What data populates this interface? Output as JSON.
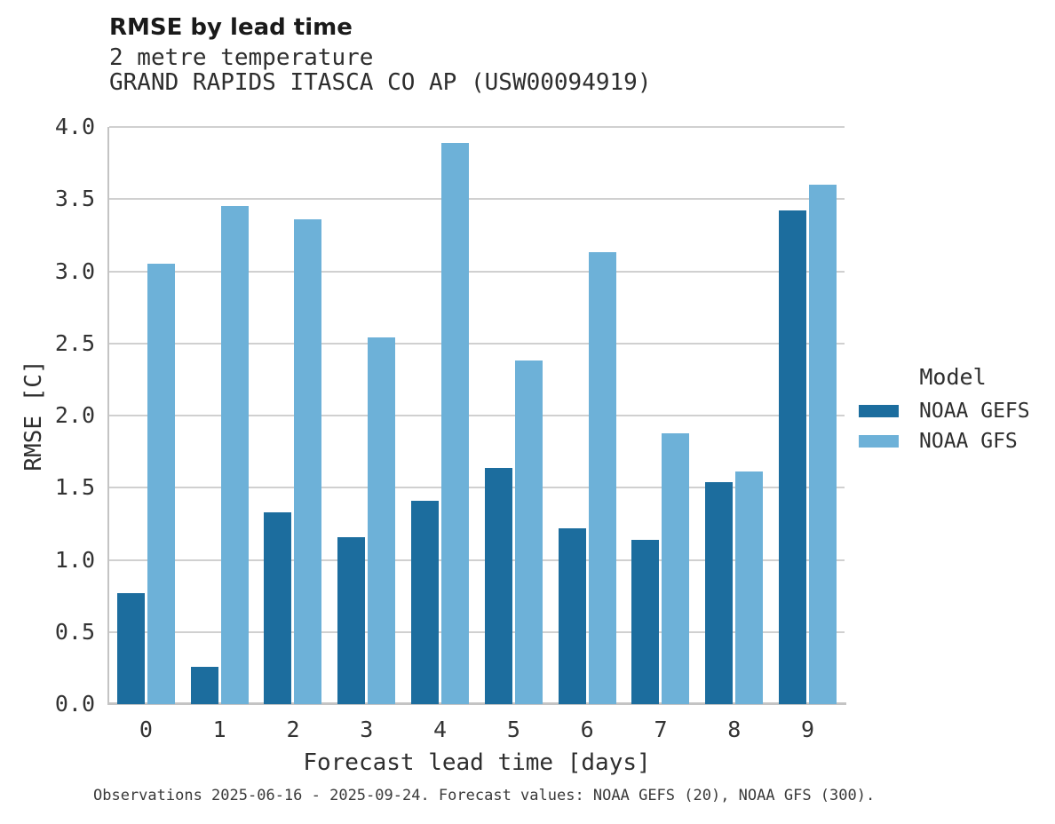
{
  "header": {
    "title": "RMSE by lead time",
    "subtitle_line1": "2 metre temperature",
    "subtitle_line2": "GRAND RAPIDS ITASCA CO AP (USW00094919)"
  },
  "chart_data": {
    "type": "bar",
    "title": "RMSE by lead time",
    "subtitle": [
      "2 metre temperature",
      "GRAND RAPIDS ITASCA CO AP (USW00094919)"
    ],
    "categories": [
      "0",
      "1",
      "2",
      "3",
      "4",
      "5",
      "6",
      "7",
      "8",
      "9"
    ],
    "series": [
      {
        "name": "NOAA GEFS",
        "color": "#1c6d9e",
        "values": [
          0.77,
          0.26,
          1.33,
          1.16,
          1.41,
          1.64,
          1.22,
          1.14,
          1.54,
          3.42
        ]
      },
      {
        "name": "NOAA GFS",
        "color": "#6db1d8",
        "values": [
          3.05,
          3.45,
          3.36,
          2.54,
          3.89,
          2.38,
          3.13,
          1.88,
          1.61,
          3.6
        ]
      }
    ],
    "xlabel": "Forecast lead time [days]",
    "ylabel": "RMSE [C]",
    "ylim": [
      0.0,
      4.0
    ],
    "ytick_step": 0.5,
    "yticks": [
      "0.0",
      "0.5",
      "1.0",
      "1.5",
      "2.0",
      "2.5",
      "3.0",
      "3.5",
      "4.0"
    ],
    "grid": true,
    "legend_title": "Model",
    "legend_position": "right"
  },
  "legend": {
    "title": "Model",
    "items": [
      {
        "label": "NOAA GEFS",
        "color": "#1c6d9e"
      },
      {
        "label": "NOAA GFS",
        "color": "#6db1d8"
      }
    ]
  },
  "footer": {
    "note": "Observations 2025-06-16 - 2025-09-24. Forecast values: NOAA GEFS (20), NOAA GFS (300)."
  },
  "colors": {
    "gefs": "#1c6d9e",
    "gfs": "#6db1d8",
    "gridline": "#d0d0d0",
    "spine": "#c4c4c4",
    "background": "#ffffff"
  }
}
